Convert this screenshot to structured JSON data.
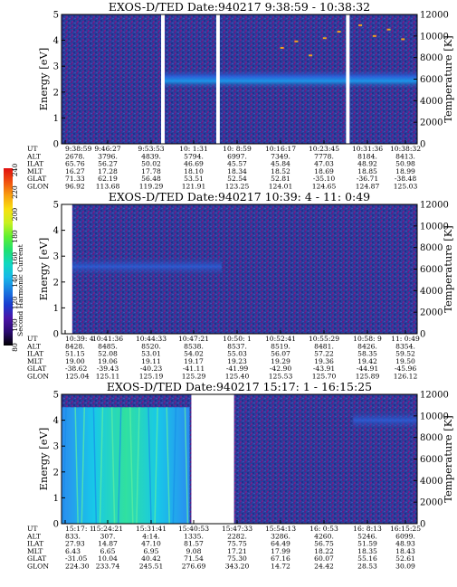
{
  "chart_data": [
    {
      "type": "heatmap",
      "title": "EXOS-D/TED   Date:940217  9:38:59 - 10:38:32",
      "ylabel": "Energy [eV]",
      "ylabel_right": "Temperature [K]",
      "ylim": [
        0,
        5
      ],
      "ylim_right": [
        0,
        12000
      ],
      "yticks": [
        "0",
        "1",
        "2",
        "3",
        "4",
        "5"
      ],
      "yticks_right": [
        "0",
        "2000",
        "4000",
        "6000",
        "8000",
        "10000",
        "12000"
      ],
      "gaps": [
        [
          0.28,
          0.29
        ],
        [
          0.435,
          0.445
        ],
        [
          0.8,
          0.81
        ]
      ],
      "band": {
        "level": "mid",
        "center": 2.5,
        "from": 0.29,
        "to": 1.0
      },
      "temperature_trace": [
        [
          0.62,
          8900
        ],
        [
          0.66,
          9500
        ],
        [
          0.7,
          8200
        ],
        [
          0.74,
          9800
        ],
        [
          0.78,
          10400
        ],
        [
          0.84,
          11000
        ],
        [
          0.88,
          10000
        ],
        [
          0.92,
          10600
        ],
        [
          0.96,
          9700
        ]
      ],
      "info_table": {
        "labels": [
          "UT",
          "ALT",
          "ILAT",
          "MLT",
          "GLAT",
          "GLON"
        ],
        "columns": [
          [
            "9:38:59",
            "2678.",
            "65.76",
            "16.27",
            "71.33",
            "96.92"
          ],
          [
            "9:46:27",
            "3796.",
            "56.27",
            "17.28",
            "62.19",
            "113.68"
          ],
          [
            "9:53:53",
            "4839.",
            "50.02",
            "17.78",
            "56.48",
            "119.29"
          ],
          [
            "10: 1:31",
            "5794.",
            "46.69",
            "18.10",
            "53.51",
            "121.91"
          ],
          [
            "10: 8:59",
            "6997.",
            "45.57",
            "18.34",
            "52.54",
            "123.25"
          ],
          [
            "10:16:17",
            "7349.",
            "45.84",
            "18.52",
            "52.81",
            "124.01"
          ],
          [
            "10:23:45",
            "7778.",
            "47.03",
            "18.69",
            "-35.10",
            "124.65"
          ],
          [
            "10:31:36",
            "8184.",
            "48.92",
            "18.85",
            "-36.71",
            "124.87"
          ],
          [
            "10:38:32",
            "8413.",
            "50.98",
            "18.99",
            "-38.48",
            "125.03"
          ]
        ]
      }
    },
    {
      "type": "heatmap",
      "title": "EXOS-D/TED   Date:940217  10:39: 4 - 11: 0:49",
      "ylabel": "Energy [eV]",
      "ylabel_right": "Temperature [K]",
      "ylim": [
        0,
        5
      ],
      "ylim_right": [
        0,
        12000
      ],
      "yticks": [
        "0",
        "1",
        "2",
        "3",
        "4",
        "5"
      ],
      "yticks_right": [
        "0",
        "2000",
        "4000",
        "6000",
        "8000",
        "10000",
        "12000"
      ],
      "gaps": [
        [
          0.0,
          0.03
        ]
      ],
      "band": {
        "level": "low",
        "center": 2.6,
        "from": 0.03,
        "to": 0.45
      },
      "temperature_trace": [],
      "info_table": {
        "labels": [
          "UT",
          "ALT",
          "ILAT",
          "MLT",
          "GLAT",
          "GLON"
        ],
        "columns": [
          [
            "10:39: 4",
            "8428.",
            "51.15",
            "19.00",
            "-38.62",
            "125.04"
          ],
          [
            "10:41:36",
            "8485.",
            "52.08",
            "19.06",
            "-39.43",
            "125.11"
          ],
          [
            "10:44:33",
            "8520.",
            "53.01",
            "19.11",
            "-40.23",
            "125.19"
          ],
          [
            "10:47:21",
            "8538.",
            "54.02",
            "19.17",
            "-41.11",
            "125.29"
          ],
          [
            "10:50: 1",
            "8537.",
            "55.03",
            "19.23",
            "-41.99",
            "125.40"
          ],
          [
            "10:52:41",
            "8519.",
            "56.07",
            "19.29",
            "-42.90",
            "125.53"
          ],
          [
            "10:55:29",
            "8481.",
            "57.22",
            "19.36",
            "-43.91",
            "125.70"
          ],
          [
            "10:58: 9",
            "8426.",
            "58.35",
            "19.42",
            "-44.91",
            "125.89"
          ],
          [
            "11: 0:49",
            "8354.",
            "59.52",
            "19.50",
            "-45.96",
            "126.12"
          ]
        ]
      }
    },
    {
      "type": "heatmap",
      "title": "EXOS-D/TED   Date:940217  15:17: 1 - 16:15:25",
      "ylabel": "Energy [eV]",
      "ylabel_right": "Temperature [K]",
      "ylim": [
        0,
        5
      ],
      "ylim_right": [
        0,
        12000
      ],
      "yticks": [
        "0",
        "1",
        "2",
        "3",
        "4",
        "5"
      ],
      "yticks_right": [
        "0",
        "2000",
        "4000",
        "6000",
        "8000",
        "10000",
        "12000"
      ],
      "gaps": [
        [
          0.365,
          0.485
        ]
      ],
      "band": {
        "level": "low",
        "center": 4.0,
        "from": 0.82,
        "to": 1.0
      },
      "hot_region": {
        "from": 0.0,
        "to": 0.36,
        "top": 4.5
      },
      "temperature_trace": [],
      "info_table": {
        "labels": [
          "UT",
          "ALT",
          "ILAT",
          "MLT",
          "GLAT",
          "GLON"
        ],
        "columns": [
          [
            "15:17: 1",
            "833.",
            "27.93",
            "6.43",
            "-31.05",
            "224.30"
          ],
          [
            "15:24:21",
            "307.",
            "14.87",
            "6.65",
            "10.04",
            "233.74"
          ],
          [
            "15:31:41",
            "4:14.",
            "47.10",
            "6.95",
            "40.42",
            "245.51"
          ],
          [
            "15:40:53",
            "1335.",
            "81.57",
            "9.08",
            "71.54",
            "276.69"
          ],
          [
            "15:47:33",
            "2282.",
            "75.75",
            "17.21",
            "75.30",
            "343.20"
          ],
          [
            "15:54:13",
            "3286.",
            "64.49",
            "17.99",
            "67.16",
            "14.72"
          ],
          [
            "16: 0:53",
            "4260.",
            "56.75",
            "18.22",
            "60.07",
            "24.42"
          ],
          [
            "16: 8:13",
            "5246.",
            "51.59",
            "18.35",
            "55.16",
            "28.53"
          ],
          [
            "16:15:25",
            "6099.",
            "48.93",
            "18.43",
            "52.61",
            "30.09"
          ]
        ]
      }
    }
  ],
  "colorbar": {
    "label": "Second Harmonic Current",
    "ticks": [
      "80",
      "100",
      "120",
      "140",
      "160",
      "180",
      "200",
      "220",
      "240"
    ],
    "colors": [
      "#000000",
      "#2a0a70",
      "#4a14a8",
      "#1a3cd0",
      "#1a7ae0",
      "#18b8e8",
      "#10d8c0",
      "#20e070",
      "#60f030",
      "#c8f020",
      "#f8e010",
      "#f8a010",
      "#f05010",
      "#e01010"
    ]
  }
}
